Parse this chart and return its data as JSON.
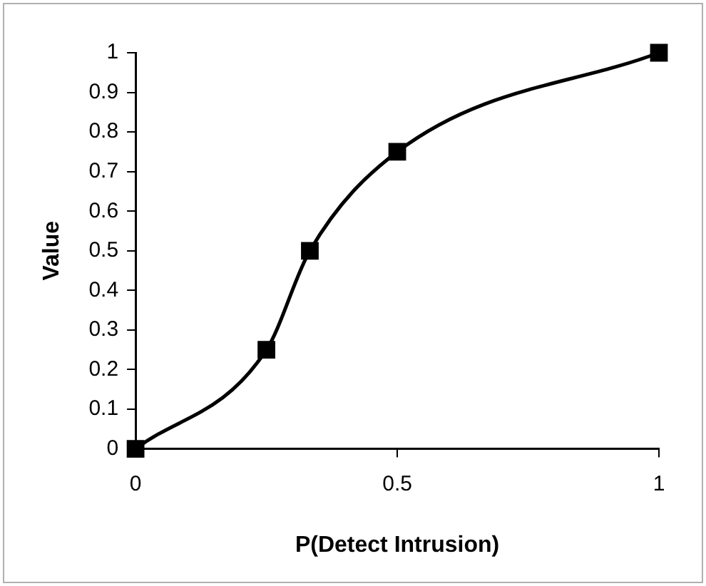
{
  "chart_data": {
    "type": "line",
    "xlabel": "P(Detect Intrusion)",
    "ylabel": "Value",
    "x": [
      0,
      0.25,
      0.333,
      0.5,
      1
    ],
    "series": [
      {
        "color": "#000000",
        "values": [
          0,
          0.25,
          0.5,
          0.75,
          1
        ]
      }
    ],
    "xlim": [
      0,
      1
    ],
    "xticks": [
      0,
      0.5,
      1
    ],
    "ylim": [
      0,
      1
    ],
    "yticks": [
      0,
      0.1,
      0.2,
      0.3,
      0.4,
      0.5,
      0.6,
      0.7,
      0.8,
      0.9,
      1
    ],
    "grid": false,
    "legend": false,
    "marker": "square",
    "line_style": "solid"
  }
}
